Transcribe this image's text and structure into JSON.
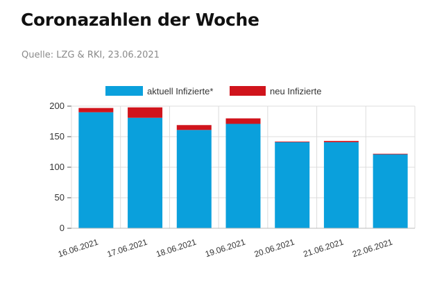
{
  "header": {
    "title": "Coronazahlen der Woche",
    "source": "Quelle: LZG & RKI, 23.06.2021"
  },
  "colors": {
    "aktuell": "#0aa0dc",
    "neu": "#d0141c",
    "grid": "#dcdcdc",
    "axis_text": "#333333"
  },
  "chart_data": {
    "type": "bar",
    "stacked": true,
    "categories": [
      "16.06.2021",
      "17.06.2021",
      "18.06.2021",
      "19.06.2021",
      "20.06.2021",
      "21.06.2021",
      "22.06.2021"
    ],
    "series": [
      {
        "name": "aktuell Infizierte*",
        "values": [
          190,
          181,
          161,
          171,
          141,
          141,
          121
        ]
      },
      {
        "name": "neu Infizierte",
        "values": [
          7,
          17,
          8,
          9,
          1,
          2,
          1
        ]
      }
    ],
    "y_ticks": [
      0,
      50,
      100,
      150,
      200
    ],
    "ylim": [
      0,
      200
    ],
    "legend_position": "top",
    "grid": true,
    "xlabel": "",
    "ylabel": ""
  }
}
